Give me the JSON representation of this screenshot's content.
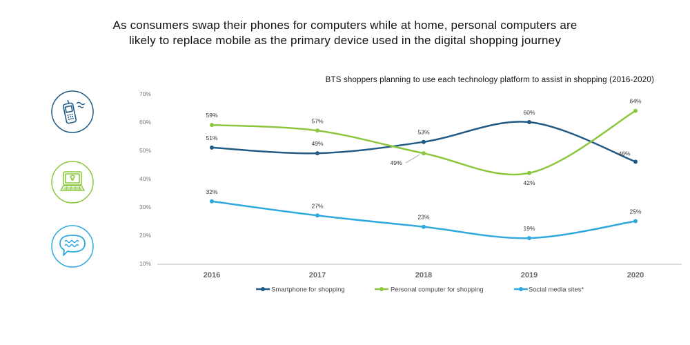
{
  "headline": {
    "line1": "As consumers swap their phones for computers while at home, personal computers are",
    "line2": "likely to replace mobile as the primary device used in the digital shopping journey"
  },
  "icons": [
    "mobile-phone-icon",
    "laptop-icon",
    "speech-bubble-icon"
  ],
  "colors": {
    "smartphone": "#1f5a85",
    "pc": "#8cc63e",
    "social": "#2ea8dd",
    "axis_text": "#777777",
    "axis_line": "#bbbbbb"
  },
  "chart_data": {
    "type": "line",
    "title": "BTS shoppers planning to use each technology platform to assist in shopping  (2016-2020)",
    "categories": [
      "2016",
      "2017",
      "2018",
      "2019",
      "2020"
    ],
    "ylim": [
      10,
      70
    ],
    "yticks": [
      "10%",
      "20%",
      "30%",
      "40%",
      "50%",
      "60%",
      "70%"
    ],
    "grid": false,
    "legend_position": "bottom",
    "series": [
      {
        "name": "Smartphone for shopping",
        "key": "smartphone",
        "values": [
          51,
          49,
          53,
          60,
          46
        ],
        "labels": [
          "51%",
          "49%",
          "53%",
          "60%",
          "46%"
        ]
      },
      {
        "name": "Personal computer for shopping",
        "key": "pc",
        "values": [
          59,
          57,
          49,
          42,
          64
        ],
        "labels": [
          "59%",
          "57%",
          "49%",
          "42%",
          "64%"
        ]
      },
      {
        "name": "Social media sites*",
        "key": "social",
        "values": [
          32,
          27,
          23,
          19,
          25
        ],
        "labels": [
          "32%",
          "27%",
          "23%",
          "19%",
          "25%"
        ]
      }
    ]
  }
}
